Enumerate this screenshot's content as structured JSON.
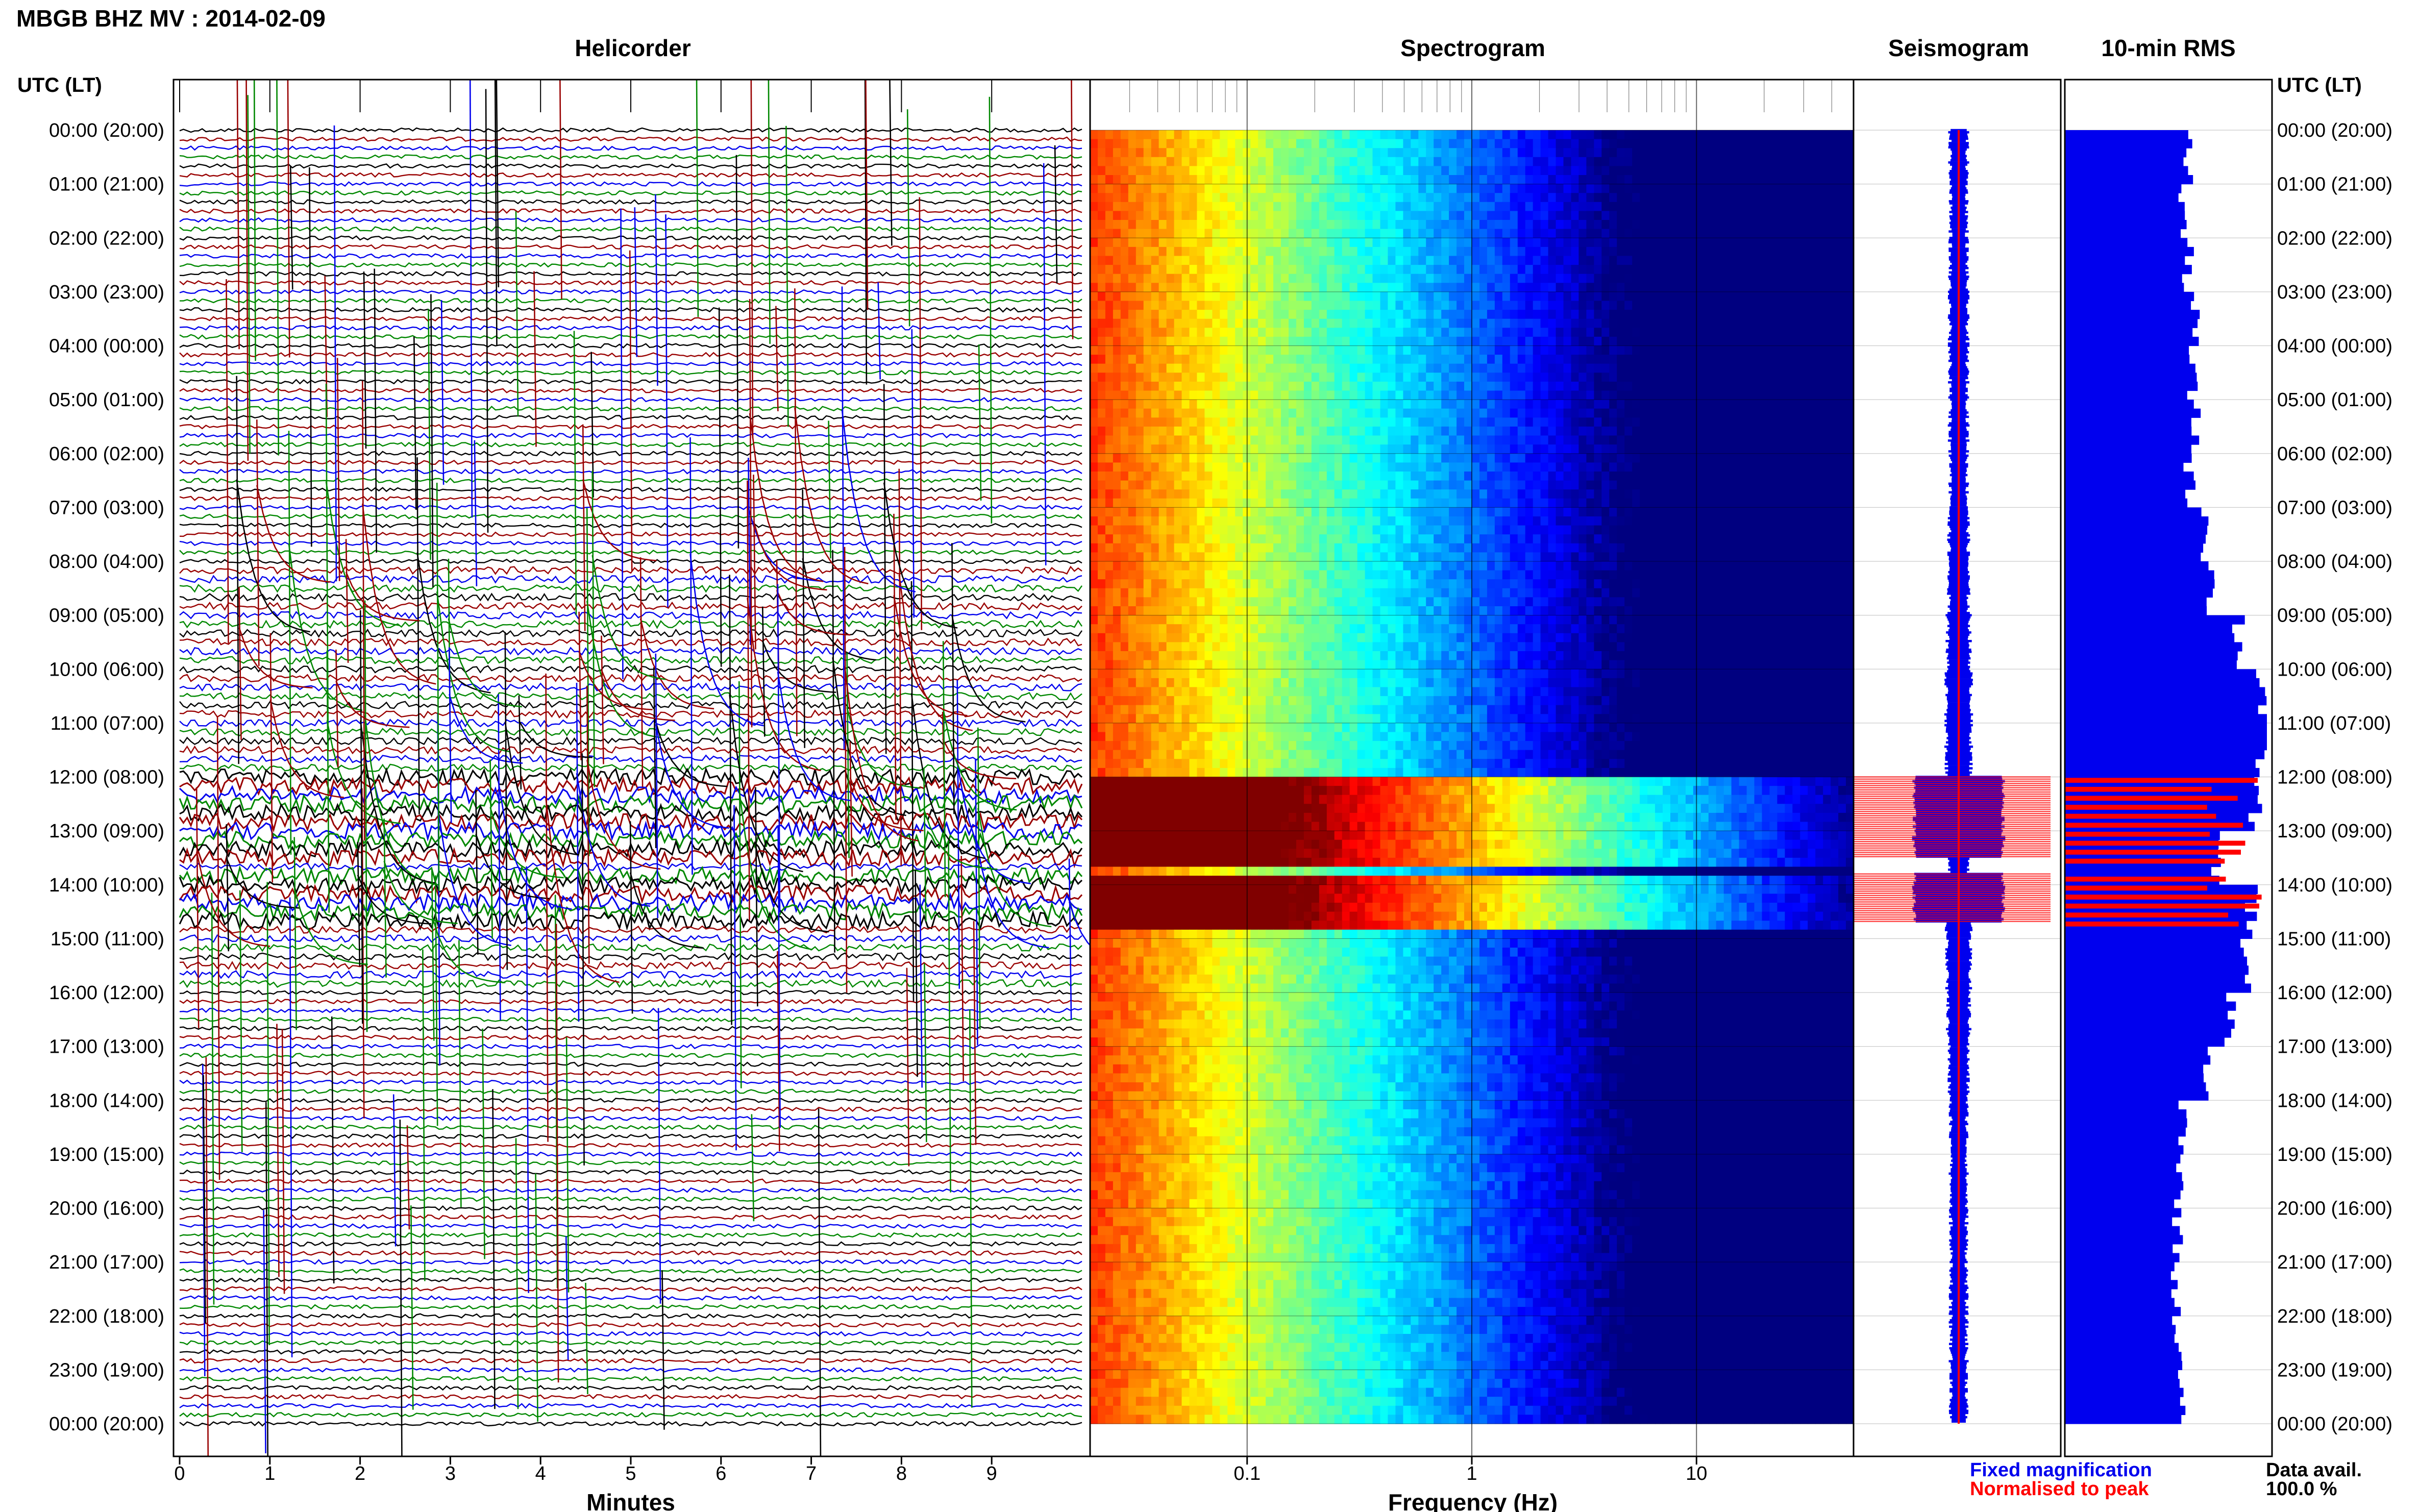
{
  "title": "MBGB BHZ MV : 2014-02-09",
  "colors": {
    "blue": "#0000ee",
    "red": "#ff0000",
    "green": "#008800",
    "darkred": "#990000",
    "black": "#000000"
  },
  "left_axis_header": "UTC (LT)",
  "right_axis_header": "UTC (LT)",
  "legend": {
    "fixed": "Fixed magnification",
    "normalised": "Normalised to peak",
    "avail_label": "Data avail.",
    "avail_value": "100.0 %"
  },
  "chart_data": [
    {
      "type": "line",
      "panel": "helicorder",
      "title": "Helicorder",
      "xlabel": "Minutes",
      "xlim": [
        0,
        10
      ],
      "x_ticks": [
        "0",
        "1",
        "2",
        "3",
        "4",
        "5",
        "6",
        "7",
        "8",
        "9"
      ],
      "y_tick_labels": [
        "00:00 (20:00)",
        "01:00 (21:00)",
        "02:00 (22:00)",
        "03:00 (23:00)",
        "04:00 (00:00)",
        "05:00 (01:00)",
        "06:00 (02:00)",
        "07:00 (03:00)",
        "08:00 (04:00)",
        "09:00 (05:00)",
        "10:00 (06:00)",
        "11:00 (07:00)",
        "12:00 (08:00)",
        "13:00 (09:00)",
        "14:00 (10:00)",
        "15:00 (11:00)",
        "16:00 (12:00)",
        "17:00 (13:00)",
        "18:00 (14:00)",
        "19:00 (15:00)",
        "20:00 (16:00)",
        "21:00 (17:00)",
        "22:00 (18:00)",
        "23:00 (19:00)",
        "00:00 (20:00)"
      ],
      "trace_colors_cycle": [
        "black",
        "red",
        "blue",
        "green"
      ],
      "lines_per_hour": 6
    },
    {
      "type": "heatmap",
      "panel": "spectrogram",
      "title": "Spectrogram",
      "xlabel": "Frequency (Hz)",
      "x_scale": "log",
      "xlim": [
        0.02,
        50
      ],
      "x_ticks": [
        "0.1",
        "1",
        "10"
      ],
      "colormap": "jet",
      "ylim_hours": [
        0,
        24
      ],
      "high_energy_periods_utc": [
        [
          12.0,
          13.5
        ],
        [
          13.8,
          14.7
        ]
      ]
    },
    {
      "type": "area",
      "panel": "seismogram",
      "title": "Seismogram",
      "series": [
        {
          "name": "Fixed magnification",
          "color": "blue"
        },
        {
          "name": "Normalised to peak",
          "color": "red"
        }
      ]
    },
    {
      "type": "bar",
      "panel": "rms",
      "title": "10-min RMS",
      "orientation": "horizontal",
      "bin_minutes": 10,
      "hourly_rms_fraction": [
        0.62,
        0.6,
        0.62,
        0.65,
        0.64,
        0.66,
        0.63,
        0.72,
        0.74,
        0.88,
        1.0,
        1.0,
        0.95,
        0.75,
        0.95,
        0.9,
        0.84,
        0.7,
        0.6,
        0.58,
        0.57,
        0.56,
        0.57,
        0.58
      ],
      "normalised_hours_utc": [
        [
          12.0,
          13.5
        ],
        [
          13.8,
          14.7
        ]
      ]
    }
  ]
}
